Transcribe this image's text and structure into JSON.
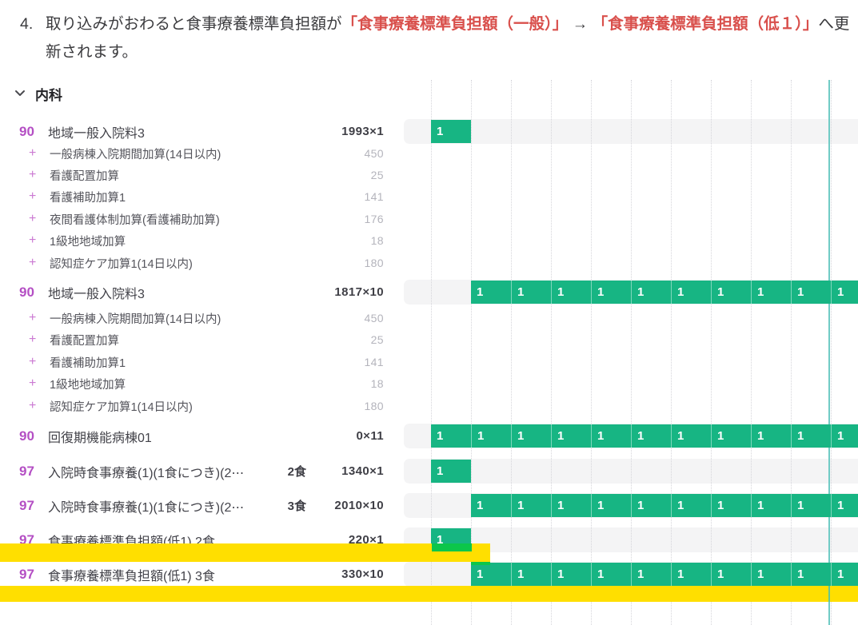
{
  "instruction": {
    "number": "4.",
    "segments": [
      {
        "text": "取り込みがおわると食事療養標準負担額が",
        "emphasis": false
      },
      {
        "text": "「食事療養標準負担額（一般）」",
        "emphasis": true
      },
      {
        "text": " → ",
        "emphasis": false
      },
      {
        "text": "「食事療養標準負担額（低１）」",
        "emphasis": true
      },
      {
        "text": "へ更新されます。",
        "emphasis": false
      }
    ]
  },
  "section": {
    "title": "内科"
  },
  "cell_value": "1",
  "rows": [
    {
      "type": "main",
      "code": "90",
      "label": "地域一般入院料3",
      "meal": "",
      "points": "1993×1",
      "cells": {
        "start": 1,
        "count": 1
      }
    },
    {
      "type": "sub",
      "label": "一般病棟入院期間加算(14日以内)",
      "points": "450"
    },
    {
      "type": "sub",
      "label": "看護配置加算",
      "points": "25"
    },
    {
      "type": "sub",
      "label": "看護補助加算1",
      "points": "141"
    },
    {
      "type": "sub",
      "label": "夜間看護体制加算(看護補助加算)",
      "points": "176"
    },
    {
      "type": "sub",
      "label": "1級地地域加算",
      "points": "18"
    },
    {
      "type": "sub",
      "label": "認知症ケア加算1(14日以内)",
      "points": "180"
    },
    {
      "type": "main",
      "code": "90",
      "label": "地域一般入院料3",
      "meal": "",
      "points": "1817×10",
      "cells": {
        "start": 2,
        "count": 10
      }
    },
    {
      "type": "sub",
      "label": "一般病棟入院期間加算(14日以内)",
      "points": "450"
    },
    {
      "type": "sub",
      "label": "看護配置加算",
      "points": "25"
    },
    {
      "type": "sub",
      "label": "看護補助加算1",
      "points": "141"
    },
    {
      "type": "sub",
      "label": "1級地地域加算",
      "points": "18"
    },
    {
      "type": "sub",
      "label": "認知症ケア加算1(14日以内)",
      "points": "180"
    },
    {
      "type": "main",
      "code": "90",
      "label": "回復期機能病棟01",
      "meal": "",
      "points": "0×11",
      "cells": {
        "start": 1,
        "count": 11
      }
    },
    {
      "type": "main",
      "code": "97",
      "label": "入院時食事療養(1)(1食につき)(2⋯",
      "meal": "2食",
      "points": "1340×1",
      "cells": {
        "start": 1,
        "count": 1
      }
    },
    {
      "type": "main",
      "code": "97",
      "label": "入院時食事療養(1)(1食につき)(2⋯",
      "meal": "3食",
      "points": "2010×10",
      "cells": {
        "start": 2,
        "count": 10
      }
    },
    {
      "type": "main",
      "code": "97",
      "label": "食事療養標準負担額(低1) 2食",
      "meal": "",
      "points": "220×1",
      "cells": {
        "start": 1,
        "count": 1
      }
    },
    {
      "type": "main",
      "code": "97",
      "label": "食事療養標準負担額(低1) 3食",
      "meal": "",
      "points": "330×10",
      "cells": {
        "start": 2,
        "count": 10
      }
    }
  ],
  "highlight": {
    "color": "#ffdf00",
    "highlighted_rows": [
      "食事療養標準負担額(低1) 2食",
      "食事療養標準負担額(低1) 3食"
    ]
  },
  "colors": {
    "cell_green": "#17b583",
    "accent_purple": "#b44fc4",
    "alert_red": "#d9504c",
    "timeline_teal": "#70cbc5",
    "highlight_yellow": "#ffdf00",
    "track_gray": "#f4f4f5"
  }
}
